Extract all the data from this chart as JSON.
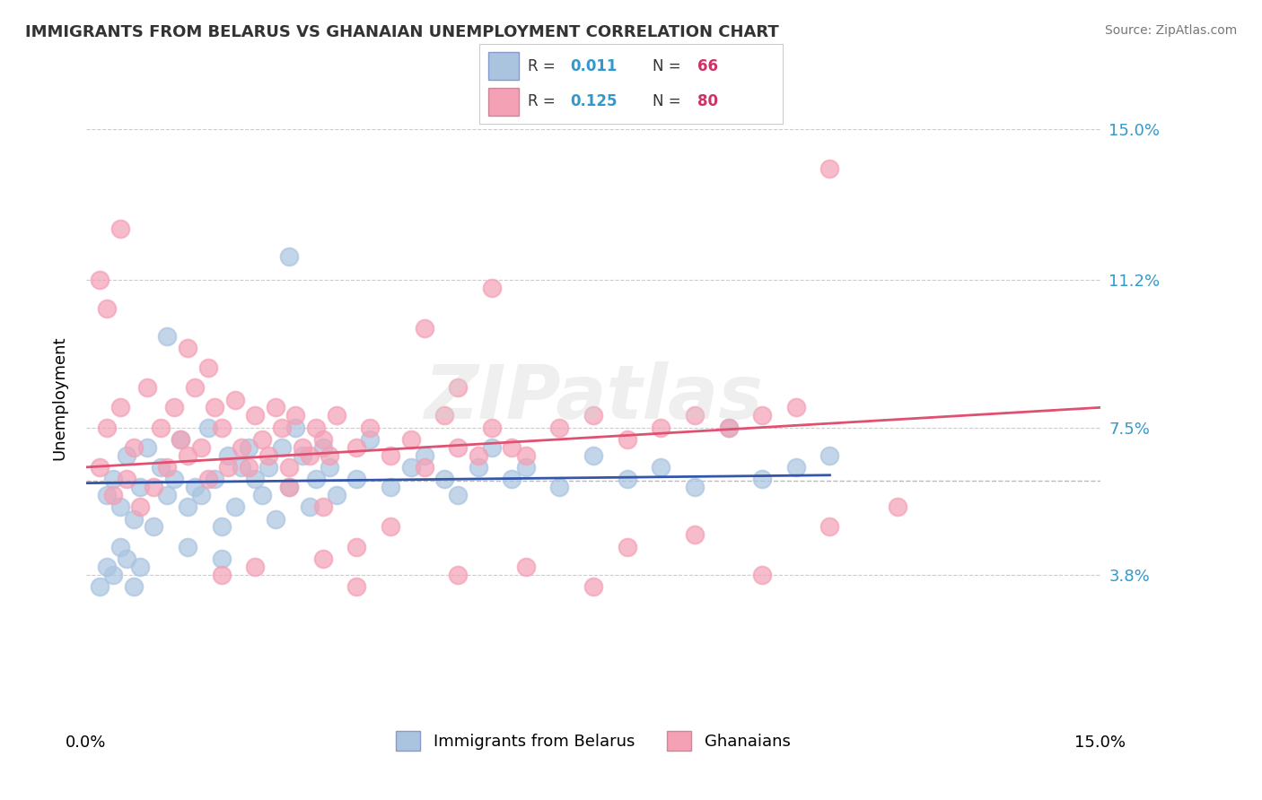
{
  "title": "IMMIGRANTS FROM BELARUS VS GHANAIAN UNEMPLOYMENT CORRELATION CHART",
  "source_text": "Source: ZipAtlas.com",
  "xlabel": "",
  "ylabel": "Unemployment",
  "xlim": [
    0.0,
    15.0
  ],
  "ylim": [
    0.0,
    16.5
  ],
  "ytick_positions": [
    3.8,
    7.5,
    11.2,
    15.0
  ],
  "ytick_labels": [
    "3.8%",
    "7.5%",
    "11.2%",
    "15.0%"
  ],
  "xtick_positions": [
    0.0,
    15.0
  ],
  "xtick_labels": [
    "0.0%",
    "15.0%"
  ],
  "right_yticks": true,
  "watermark": "ZIPatlas",
  "blue_color": "#aac4e0",
  "pink_color": "#f4a0b5",
  "blue_line_color": "#3355aa",
  "pink_line_color": "#e05070",
  "legend_R1": "R = 0.011",
  "legend_N1": "N = 66",
  "legend_R2": "R = 0.125",
  "legend_N2": "N = 80",
  "legend_label1": "Immigrants from Belarus",
  "legend_label2": "Ghanaians",
  "text_color_R": "#3399cc",
  "text_color_N": "#cc3366",
  "grid_color": "#cccccc",
  "background_color": "#ffffff",
  "blue_scatter": [
    [
      0.3,
      5.8
    ],
    [
      0.4,
      6.2
    ],
    [
      0.5,
      5.5
    ],
    [
      0.6,
      6.8
    ],
    [
      0.7,
      5.2
    ],
    [
      0.8,
      6.0
    ],
    [
      0.9,
      7.0
    ],
    [
      1.0,
      5.0
    ],
    [
      1.1,
      6.5
    ],
    [
      1.2,
      5.8
    ],
    [
      1.3,
      6.2
    ],
    [
      1.4,
      7.2
    ],
    [
      1.5,
      5.5
    ],
    [
      1.6,
      6.0
    ],
    [
      1.7,
      5.8
    ],
    [
      1.8,
      7.5
    ],
    [
      1.9,
      6.2
    ],
    [
      2.0,
      5.0
    ],
    [
      2.1,
      6.8
    ],
    [
      2.2,
      5.5
    ],
    [
      2.3,
      6.5
    ],
    [
      2.4,
      7.0
    ],
    [
      2.5,
      6.2
    ],
    [
      2.6,
      5.8
    ],
    [
      2.7,
      6.5
    ],
    [
      2.8,
      5.2
    ],
    [
      2.9,
      7.0
    ],
    [
      3.0,
      6.0
    ],
    [
      3.1,
      7.5
    ],
    [
      3.2,
      6.8
    ],
    [
      3.3,
      5.5
    ],
    [
      3.4,
      6.2
    ],
    [
      3.5,
      7.0
    ],
    [
      3.6,
      6.5
    ],
    [
      3.7,
      5.8
    ],
    [
      4.0,
      6.2
    ],
    [
      4.2,
      7.2
    ],
    [
      4.5,
      6.0
    ],
    [
      4.8,
      6.5
    ],
    [
      5.0,
      6.8
    ],
    [
      5.3,
      6.2
    ],
    [
      5.5,
      5.8
    ],
    [
      5.8,
      6.5
    ],
    [
      6.0,
      7.0
    ],
    [
      6.3,
      6.2
    ],
    [
      6.5,
      6.5
    ],
    [
      7.0,
      6.0
    ],
    [
      7.5,
      6.8
    ],
    [
      8.0,
      6.2
    ],
    [
      8.5,
      6.5
    ],
    [
      9.0,
      6.0
    ],
    [
      9.5,
      7.5
    ],
    [
      10.0,
      6.2
    ],
    [
      10.5,
      6.5
    ],
    [
      11.0,
      6.8
    ],
    [
      0.2,
      3.5
    ],
    [
      0.3,
      4.0
    ],
    [
      0.4,
      3.8
    ],
    [
      0.5,
      4.5
    ],
    [
      0.6,
      4.2
    ],
    [
      0.7,
      3.5
    ],
    [
      0.8,
      4.0
    ],
    [
      1.5,
      4.5
    ],
    [
      2.0,
      4.2
    ],
    [
      3.0,
      11.8
    ],
    [
      1.2,
      9.8
    ]
  ],
  "pink_scatter": [
    [
      0.2,
      6.5
    ],
    [
      0.3,
      7.5
    ],
    [
      0.4,
      5.8
    ],
    [
      0.5,
      8.0
    ],
    [
      0.6,
      6.2
    ],
    [
      0.7,
      7.0
    ],
    [
      0.8,
      5.5
    ],
    [
      0.9,
      8.5
    ],
    [
      1.0,
      6.0
    ],
    [
      1.1,
      7.5
    ],
    [
      1.2,
      6.5
    ],
    [
      1.3,
      8.0
    ],
    [
      1.4,
      7.2
    ],
    [
      1.5,
      6.8
    ],
    [
      1.6,
      8.5
    ],
    [
      1.7,
      7.0
    ],
    [
      1.8,
      6.2
    ],
    [
      1.9,
      8.0
    ],
    [
      2.0,
      7.5
    ],
    [
      2.1,
      6.5
    ],
    [
      2.2,
      8.2
    ],
    [
      2.3,
      7.0
    ],
    [
      2.4,
      6.5
    ],
    [
      2.5,
      7.8
    ],
    [
      2.6,
      7.2
    ],
    [
      2.7,
      6.8
    ],
    [
      2.8,
      8.0
    ],
    [
      2.9,
      7.5
    ],
    [
      3.0,
      6.5
    ],
    [
      3.1,
      7.8
    ],
    [
      3.2,
      7.0
    ],
    [
      3.3,
      6.8
    ],
    [
      3.4,
      7.5
    ],
    [
      3.5,
      7.2
    ],
    [
      3.6,
      6.8
    ],
    [
      3.7,
      7.8
    ],
    [
      4.0,
      7.0
    ],
    [
      4.2,
      7.5
    ],
    [
      4.5,
      6.8
    ],
    [
      4.8,
      7.2
    ],
    [
      5.0,
      6.5
    ],
    [
      5.3,
      7.8
    ],
    [
      5.5,
      7.0
    ],
    [
      5.8,
      6.8
    ],
    [
      6.0,
      7.5
    ],
    [
      6.3,
      7.0
    ],
    [
      6.5,
      6.8
    ],
    [
      7.0,
      7.5
    ],
    [
      7.5,
      7.8
    ],
    [
      8.0,
      7.2
    ],
    [
      8.5,
      7.5
    ],
    [
      9.0,
      7.8
    ],
    [
      9.5,
      7.5
    ],
    [
      10.0,
      7.8
    ],
    [
      10.5,
      8.0
    ],
    [
      3.5,
      5.5
    ],
    [
      4.0,
      4.5
    ],
    [
      4.5,
      5.0
    ],
    [
      5.0,
      10.0
    ],
    [
      5.5,
      8.5
    ],
    [
      6.0,
      11.0
    ],
    [
      0.5,
      12.5
    ],
    [
      1.5,
      9.5
    ],
    [
      0.2,
      11.2
    ],
    [
      0.3,
      10.5
    ],
    [
      3.0,
      6.0
    ],
    [
      1.8,
      9.0
    ],
    [
      4.0,
      3.5
    ],
    [
      2.5,
      4.0
    ],
    [
      5.5,
      3.8
    ],
    [
      3.5,
      4.2
    ],
    [
      6.5,
      4.0
    ],
    [
      7.5,
      3.5
    ],
    [
      2.0,
      3.8
    ],
    [
      11.0,
      14.0
    ],
    [
      8.0,
      4.5
    ],
    [
      9.0,
      4.8
    ],
    [
      10.0,
      3.8
    ],
    [
      11.0,
      5.0
    ],
    [
      12.0,
      5.5
    ]
  ],
  "blue_trendline": {
    "x_start": 0.0,
    "x_end": 11.0,
    "y_start": 6.1,
    "y_end": 6.3
  },
  "pink_trendline": {
    "x_start": 0.0,
    "x_end": 15.0,
    "y_start": 6.5,
    "y_end": 8.0
  },
  "dotted_line_y": 6.15,
  "dotted_line_x_start": 0.0,
  "dotted_line_x_end": 15.0
}
